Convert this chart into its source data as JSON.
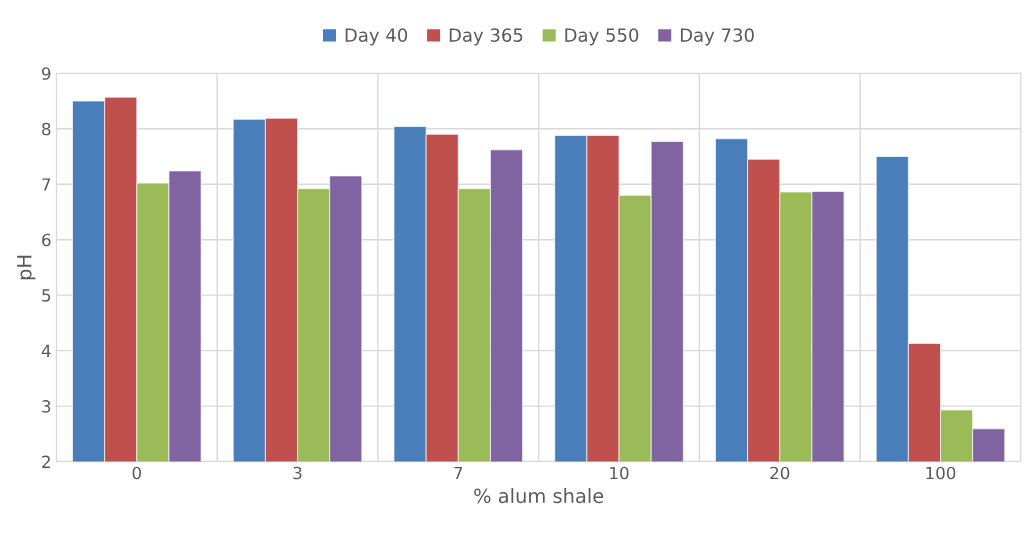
{
  "chart_data": {
    "type": "bar",
    "xlabel": "% alum shale",
    "ylabel": "pH",
    "categories": [
      "0",
      "3",
      "7",
      "10",
      "20",
      "100"
    ],
    "series": [
      {
        "name": "Day 40",
        "color": "#4a7ebb",
        "values": [
          8.5,
          8.17,
          8.04,
          7.88,
          7.82,
          7.5
        ]
      },
      {
        "name": "Day 365",
        "color": "#c0504d",
        "values": [
          8.57,
          8.19,
          7.9,
          7.88,
          7.45,
          4.13
        ]
      },
      {
        "name": "Day 550",
        "color": "#9bbb59",
        "values": [
          7.02,
          6.92,
          6.92,
          6.8,
          6.86,
          2.93
        ]
      },
      {
        "name": "Day 730",
        "color": "#8064a2",
        "values": [
          7.24,
          7.15,
          7.62,
          7.77,
          6.87,
          2.59
        ]
      }
    ],
    "ylim": [
      2,
      9
    ],
    "yticks": [
      2,
      3,
      4,
      5,
      6,
      7,
      8,
      9
    ],
    "grid": true,
    "legend": "top"
  }
}
